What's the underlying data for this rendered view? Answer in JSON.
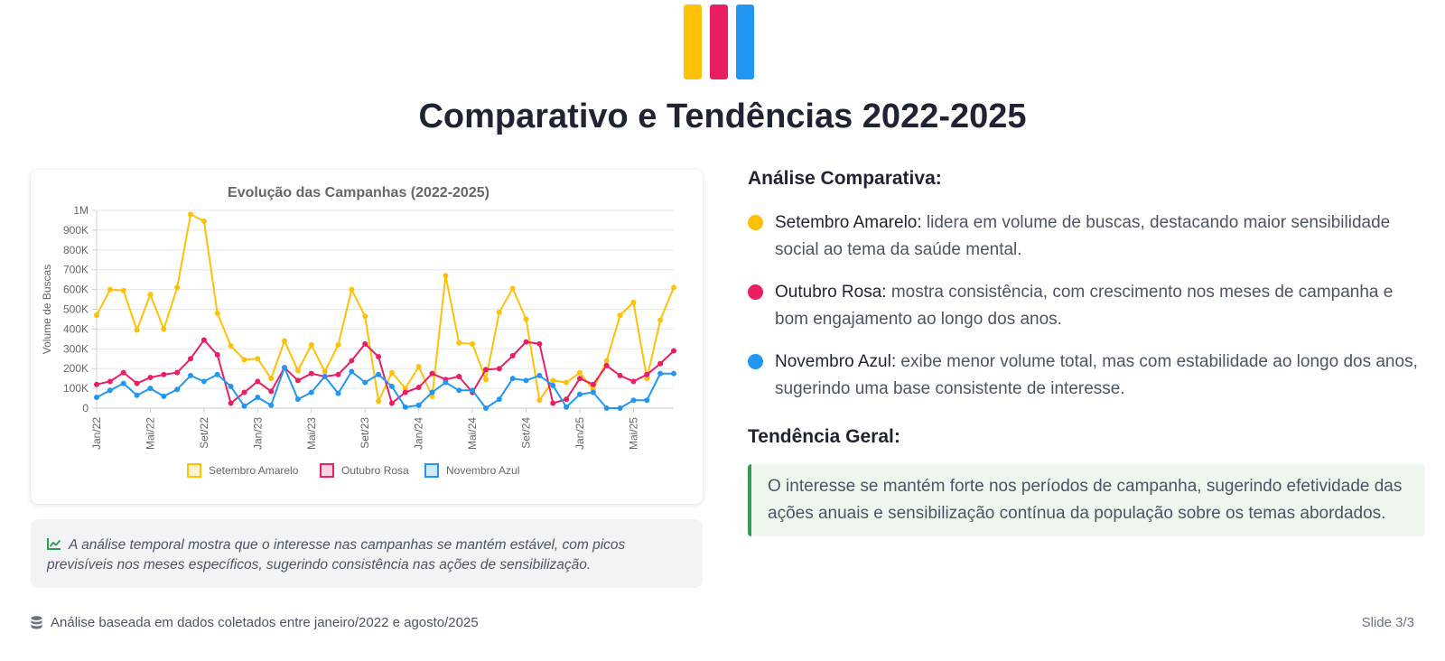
{
  "logo": {
    "icon": "awareness-ribbons-logo",
    "colors": [
      "#FFC107",
      "#E91E63",
      "#2196F3"
    ]
  },
  "page_title": "Comparativo e Tendências 2022-2025",
  "chart_data": {
    "type": "line",
    "title": "Evolução das Campanhas (2022-2025)",
    "xlabel": "",
    "ylabel": "Volume de Buscas",
    "ylim": [
      0,
      1000000
    ],
    "yticks": [
      "0",
      "100K",
      "200K",
      "300K",
      "400K",
      "500K",
      "600K",
      "700K",
      "800K",
      "900K",
      "1M"
    ],
    "xtick_labels": [
      "Jan/22",
      "Mai/22",
      "Set/22",
      "Jan/23",
      "Mai/23",
      "Set/23",
      "Jan/24",
      "Mai/24",
      "Set/24",
      "Jan/25",
      "Mai/25"
    ],
    "categories": [
      "Jan/22",
      "Fev/22",
      "Mar/22",
      "Abr/22",
      "Mai/22",
      "Jun/22",
      "Jul/22",
      "Ago/22",
      "Set/22",
      "Out/22",
      "Nov/22",
      "Dez/22",
      "Jan/23",
      "Fev/23",
      "Mar/23",
      "Abr/23",
      "Mai/23",
      "Jun/23",
      "Jul/23",
      "Ago/23",
      "Set/23",
      "Out/23",
      "Nov/23",
      "Dez/23",
      "Jan/24",
      "Fev/24",
      "Mar/24",
      "Abr/24",
      "Mai/24",
      "Jun/24",
      "Jul/24",
      "Ago/24",
      "Set/24",
      "Out/24",
      "Nov/24",
      "Dez/24",
      "Jan/25",
      "Fev/25",
      "Mar/25",
      "Abr/25",
      "Mai/25",
      "Jun/25",
      "Jul/25",
      "Ago/25"
    ],
    "grid": true,
    "legend": "bottom",
    "series": [
      {
        "name": "Setembro Amarelo",
        "color": "#FFC107",
        "values": [
          470000,
          600000,
          595000,
          395000,
          575000,
          400000,
          610000,
          980000,
          945000,
          480000,
          315000,
          245000,
          250000,
          150000,
          340000,
          190000,
          320000,
          185000,
          320000,
          600000,
          465000,
          35000,
          180000,
          100000,
          210000,
          60000,
          670000,
          330000,
          325000,
          145000,
          485000,
          605000,
          450000,
          40000,
          140000,
          130000,
          180000,
          95000,
          240000,
          470000,
          535000,
          150000,
          445000,
          610000
        ]
      },
      {
        "name": "Outubro Rosa",
        "color": "#E91E63",
        "values": [
          120000,
          135000,
          180000,
          125000,
          155000,
          170000,
          180000,
          250000,
          345000,
          270000,
          25000,
          80000,
          135000,
          85000,
          205000,
          140000,
          175000,
          160000,
          170000,
          240000,
          325000,
          260000,
          25000,
          80000,
          105000,
          175000,
          145000,
          160000,
          80000,
          195000,
          200000,
          265000,
          335000,
          325000,
          25000,
          45000,
          150000,
          120000,
          215000,
          165000,
          135000,
          170000,
          225000,
          290000
        ]
      },
      {
        "name": "Novembro Azul",
        "color": "#2196F3",
        "values": [
          55000,
          90000,
          125000,
          65000,
          100000,
          60000,
          95000,
          165000,
          135000,
          170000,
          110000,
          10000,
          55000,
          15000,
          205000,
          45000,
          80000,
          160000,
          75000,
          185000,
          130000,
          170000,
          110000,
          5000,
          15000,
          80000,
          130000,
          90000,
          90000,
          0,
          45000,
          150000,
          140000,
          165000,
          115000,
          5000,
          70000,
          80000,
          0,
          0,
          40000,
          40000,
          175000,
          175000
        ]
      }
    ]
  },
  "insight": {
    "icon": "chart-line-icon",
    "text": "A análise temporal mostra que o interesse nas campanhas se mantém estável, com picos previsíveis nos meses específicos, sugerindo consistência nas ações de sensibilização."
  },
  "analysis": {
    "heading": "Análise Comparativa:",
    "items": [
      {
        "name": "Setembro Amarelo:",
        "color": "#FFC107",
        "text": " lidera em volume de buscas, destacando maior sensibilidade social ao tema da saúde mental."
      },
      {
        "name": "Outubro Rosa:",
        "color": "#E91E63",
        "text": " mostra consistência, com crescimento nos meses de campanha e bom engajamento ao longo dos anos."
      },
      {
        "name": "Novembro Azul:",
        "color": "#2196F3",
        "text": " exibe menor volume total, mas com estabilidade ao longo dos anos, sugerindo uma base consistente de interesse."
      }
    ]
  },
  "trend": {
    "heading": "Tendência Geral:",
    "text": "O interesse se mantém forte nos períodos de campanha, sugerindo efetividade das ações anuais e sensibilização contínua da população sobre os temas abordados.",
    "accent": "#2E9D4F"
  },
  "footer": {
    "icon": "database-icon",
    "text": "Análise baseada em dados coletados entre janeiro/2022 e agosto/2025",
    "slide": "Slide 3/3"
  }
}
